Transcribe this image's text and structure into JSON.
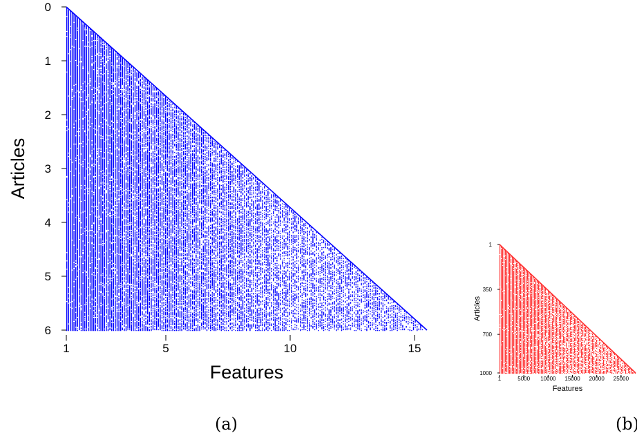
{
  "chart_data": [
    {
      "type": "scatter",
      "panel": "(a)",
      "xlabel": "Features",
      "ylabel": "Articles",
      "xticks": [
        "1",
        "5",
        "10",
        "15"
      ],
      "xtick_values": [
        1,
        5,
        10,
        15
      ],
      "yticks": [
        "0",
        "1",
        "2",
        "3",
        "4",
        "5",
        "6"
      ],
      "ytick_values": [
        0,
        1,
        2,
        3,
        4,
        5,
        6
      ],
      "xlim": [
        1,
        15.5
      ],
      "ylim": [
        0,
        6
      ],
      "y_inverted": true,
      "shape": "lower-left triangle: row y filled from x=1 to x = 1 + 14.5*y/6",
      "color": "#0000ff",
      "density_left": 0.97,
      "density_right": 0.45
    },
    {
      "type": "scatter",
      "panel": "(b)",
      "xlabel": "Features",
      "ylabel": "Articles",
      "xticks": [
        "1",
        "5000",
        "10000",
        "15000",
        "20000",
        "25000"
      ],
      "xtick_values": [
        1,
        5000,
        10000,
        15000,
        20000,
        25000
      ],
      "yticks": [
        "1",
        "350",
        "700",
        "1000"
      ],
      "ytick_values": [
        1,
        350,
        700,
        1000
      ],
      "xlim": [
        1,
        28000
      ],
      "ylim": [
        1,
        1000
      ],
      "y_inverted": true,
      "shape": "lower-left triangle",
      "color": "#ff3333",
      "density_left": 0.97,
      "density_right": 0.6
    }
  ],
  "captions": {
    "a": "(a)",
    "b": "(b)"
  }
}
